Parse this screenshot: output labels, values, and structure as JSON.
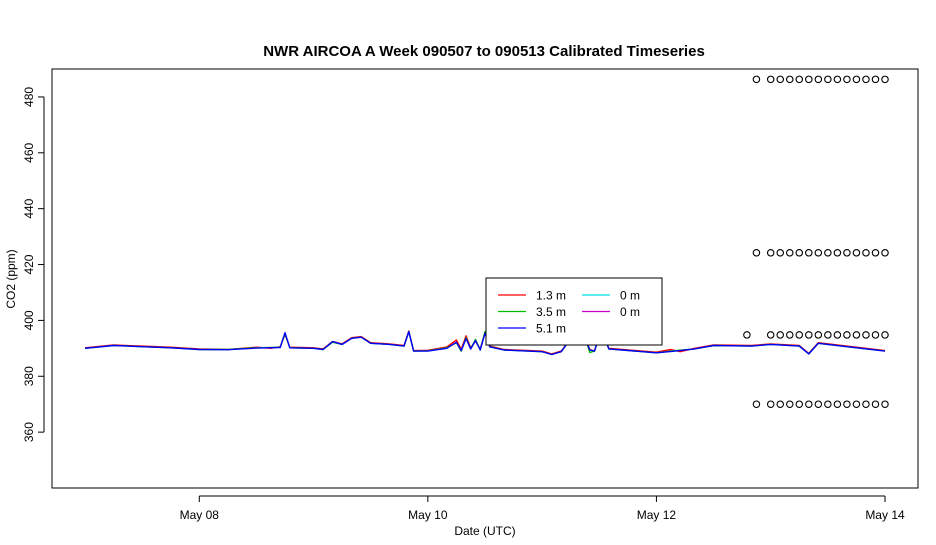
{
  "chart_data": {
    "type": "line",
    "title": "NWR AIRCOA A  Week 090507 to 090513  Calibrated Timeseries",
    "xlabel": "Date (UTC)",
    "ylabel": "CO2 (ppm)",
    "ylim": [
      340,
      490
    ],
    "xlim": [
      "2009-05-07",
      "2009-05-14"
    ],
    "x_ticks": [
      {
        "label": "May 08",
        "value": "2009-05-08"
      },
      {
        "label": "May 10",
        "value": "2009-05-10"
      },
      {
        "label": "May 12",
        "value": "2009-05-12"
      },
      {
        "label": "May 14",
        "value": "2009-05-14"
      }
    ],
    "y_ticks": [
      360,
      380,
      400,
      420,
      440,
      460,
      480
    ],
    "legend": {
      "placement": "center-right",
      "entries": [
        {
          "label": "1.3 m",
          "color": "#ff0000"
        },
        {
          "label": "3.5 m",
          "color": "#00bb00"
        },
        {
          "label": "5.1 m",
          "color": "#0000ff"
        },
        {
          "label": "0 m",
          "color": "#00dddd"
        },
        {
          "label": "0 m",
          "color": "#cc00cc"
        }
      ]
    },
    "series": [
      {
        "color": "#ff0000",
        "points": [
          [
            "2009-05-07 00:00",
            390.2
          ],
          [
            "2009-05-07 06:00",
            391.2
          ],
          [
            "2009-05-07 12:00",
            390.8
          ],
          [
            "2009-05-07 18:00",
            390.4
          ],
          [
            "2009-05-08 00:00",
            389.8
          ],
          [
            "2009-05-08 06:00",
            389.6
          ],
          [
            "2009-05-08 12:00",
            390.4
          ],
          [
            "2009-05-08 15:00",
            390.0
          ],
          [
            "2009-05-08 17:00",
            390.6
          ],
          [
            "2009-05-08 18:00",
            395.0
          ],
          [
            "2009-05-08 19:00",
            390.4
          ],
          [
            "2009-05-09 00:00",
            390.2
          ],
          [
            "2009-05-09 02:00",
            389.8
          ],
          [
            "2009-05-09 04:00",
            392.5
          ],
          [
            "2009-05-09 06:00",
            391.6
          ],
          [
            "2009-05-09 08:00",
            393.8
          ],
          [
            "2009-05-09 10:00",
            394.2
          ],
          [
            "2009-05-09 12:00",
            392.0
          ],
          [
            "2009-05-09 16:00",
            391.6
          ],
          [
            "2009-05-09 19:00",
            391.0
          ],
          [
            "2009-05-09 20:00",
            396.2
          ],
          [
            "2009-05-09 21:00",
            389.2
          ],
          [
            "2009-05-10 00:00",
            389.3
          ],
          [
            "2009-05-10 04:00",
            390.5
          ],
          [
            "2009-05-10 06:00",
            393.0
          ],
          [
            "2009-05-10 07:00",
            389.6
          ],
          [
            "2009-05-10 08:00",
            394.5
          ],
          [
            "2009-05-10 09:00",
            390.2
          ],
          [
            "2009-05-10 10:00",
            392.6
          ],
          [
            "2009-05-10 11:00",
            389.8
          ],
          [
            "2009-05-10 12:00",
            395.5
          ],
          [
            "2009-05-10 13:00",
            390.8
          ],
          [
            "2009-05-10 16:00",
            389.6
          ],
          [
            "2009-05-11 00:00",
            389.0
          ],
          [
            "2009-05-11 02:00",
            388.0
          ],
          [
            "2009-05-11 04:00",
            389.0
          ],
          [
            "2009-05-11 06:00",
            393.5
          ],
          [
            "2009-05-11 09:00",
            393.8
          ],
          [
            "2009-05-11 10:00",
            389.6
          ],
          [
            "2009-05-11 11:00",
            389.0
          ],
          [
            "2009-05-11 12:00",
            394.5
          ],
          [
            "2009-05-11 13:00",
            394.5
          ],
          [
            "2009-05-11 14:00",
            390.0
          ],
          [
            "2009-05-12 00:00",
            388.6
          ],
          [
            "2009-05-12 03:00",
            389.6
          ],
          [
            "2009-05-12 05:00",
            388.8
          ],
          [
            "2009-05-12 08:00",
            390.0
          ],
          [
            "2009-05-12 12:00",
            391.2
          ],
          [
            "2009-05-12 20:00",
            391.0
          ],
          [
            "2009-05-13 00:00",
            391.6
          ],
          [
            "2009-05-13 06:00",
            391.0
          ],
          [
            "2009-05-13 08:00",
            388.2
          ],
          [
            "2009-05-13 10:00",
            392.0
          ],
          [
            "2009-05-13 16:00",
            390.8
          ],
          [
            "2009-05-14 00:00",
            389.2
          ]
        ]
      },
      {
        "color": "#00bb00",
        "points": [
          [
            "2009-05-07 00:00",
            390.0
          ],
          [
            "2009-05-07 06:00",
            391.0
          ],
          [
            "2009-05-07 12:00",
            390.6
          ],
          [
            "2009-05-07 18:00",
            390.2
          ],
          [
            "2009-05-08 00:00",
            389.6
          ],
          [
            "2009-05-08 06:00",
            389.6
          ],
          [
            "2009-05-08 12:00",
            390.2
          ],
          [
            "2009-05-08 17:00",
            390.4
          ],
          [
            "2009-05-08 18:00",
            395.2
          ],
          [
            "2009-05-08 19:00",
            390.2
          ],
          [
            "2009-05-09 00:00",
            390.0
          ],
          [
            "2009-05-09 02:00",
            389.6
          ],
          [
            "2009-05-09 04:00",
            392.2
          ],
          [
            "2009-05-09 06:00",
            391.4
          ],
          [
            "2009-05-09 08:00",
            393.6
          ],
          [
            "2009-05-09 10:00",
            394.0
          ],
          [
            "2009-05-09 12:00",
            391.8
          ],
          [
            "2009-05-09 16:00",
            391.4
          ],
          [
            "2009-05-09 19:00",
            390.8
          ],
          [
            "2009-05-09 20:00",
            396.0
          ],
          [
            "2009-05-09 21:00",
            389.0
          ],
          [
            "2009-05-10 00:00",
            389.1
          ],
          [
            "2009-05-10 04:00",
            390.2
          ],
          [
            "2009-05-10 06:00",
            392.0
          ],
          [
            "2009-05-10 07:00",
            389.0
          ],
          [
            "2009-05-10 08:00",
            393.8
          ],
          [
            "2009-05-10 09:00",
            389.8
          ],
          [
            "2009-05-10 10:00",
            393.2
          ],
          [
            "2009-05-10 11:00",
            389.4
          ],
          [
            "2009-05-10 12:00",
            396.0
          ],
          [
            "2009-05-10 13:00",
            390.6
          ],
          [
            "2009-05-10 16:00",
            389.4
          ],
          [
            "2009-05-11 00:00",
            388.8
          ],
          [
            "2009-05-11 02:00",
            387.8
          ],
          [
            "2009-05-11 04:00",
            388.8
          ],
          [
            "2009-05-11 06:00",
            393.4
          ],
          [
            "2009-05-11 08:00",
            393.0
          ],
          [
            "2009-05-11 09:00",
            394.0
          ],
          [
            "2009-05-11 10:00",
            388.5
          ],
          [
            "2009-05-11 11:00",
            389.0
          ],
          [
            "2009-05-11 12:00",
            394.4
          ],
          [
            "2009-05-11 13:00",
            394.4
          ],
          [
            "2009-05-11 14:00",
            389.8
          ],
          [
            "2009-05-12 00:00",
            388.4
          ],
          [
            "2009-05-12 04:00",
            389.2
          ],
          [
            "2009-05-12 08:00",
            389.8
          ],
          [
            "2009-05-12 12:00",
            391.0
          ],
          [
            "2009-05-12 20:00",
            390.8
          ],
          [
            "2009-05-13 00:00",
            391.4
          ],
          [
            "2009-05-13 06:00",
            390.8
          ],
          [
            "2009-05-13 08:00",
            388.0
          ],
          [
            "2009-05-13 10:00",
            391.8
          ],
          [
            "2009-05-13 16:00",
            390.6
          ],
          [
            "2009-05-14 00:00",
            389.0
          ]
        ]
      },
      {
        "color": "#0000ff",
        "points": [
          [
            "2009-05-07 00:00",
            390.0
          ],
          [
            "2009-05-07 06:00",
            391.0
          ],
          [
            "2009-05-07 12:00",
            390.6
          ],
          [
            "2009-05-07 18:00",
            390.2
          ],
          [
            "2009-05-08 00:00",
            389.6
          ],
          [
            "2009-05-08 06:00",
            389.5
          ],
          [
            "2009-05-08 12:00",
            390.1
          ],
          [
            "2009-05-08 17:00",
            390.3
          ],
          [
            "2009-05-08 18:00",
            395.6
          ],
          [
            "2009-05-08 19:00",
            390.2
          ],
          [
            "2009-05-09 00:00",
            390.0
          ],
          [
            "2009-05-09 02:00",
            389.6
          ],
          [
            "2009-05-09 04:00",
            392.4
          ],
          [
            "2009-05-09 06:00",
            391.4
          ],
          [
            "2009-05-09 08:00",
            393.6
          ],
          [
            "2009-05-09 10:00",
            394.0
          ],
          [
            "2009-05-09 12:00",
            391.8
          ],
          [
            "2009-05-09 16:00",
            391.4
          ],
          [
            "2009-05-09 19:00",
            390.8
          ],
          [
            "2009-05-09 20:00",
            396.0
          ],
          [
            "2009-05-09 21:00",
            389.0
          ],
          [
            "2009-05-10 00:00",
            389.0
          ],
          [
            "2009-05-10 04:00",
            390.0
          ],
          [
            "2009-05-10 06:00",
            392.2
          ],
          [
            "2009-05-10 07:00",
            389.2
          ],
          [
            "2009-05-10 08:00",
            393.5
          ],
          [
            "2009-05-10 09:00",
            389.8
          ],
          [
            "2009-05-10 10:00",
            392.8
          ],
          [
            "2009-05-10 11:00",
            389.4
          ],
          [
            "2009-05-10 12:00",
            395.4
          ],
          [
            "2009-05-10 13:00",
            390.5
          ],
          [
            "2009-05-10 16:00",
            389.4
          ],
          [
            "2009-05-11 00:00",
            388.8
          ],
          [
            "2009-05-11 02:00",
            387.8
          ],
          [
            "2009-05-11 04:00",
            388.8
          ],
          [
            "2009-05-11 06:00",
            393.4
          ],
          [
            "2009-05-11 09:00",
            393.6
          ],
          [
            "2009-05-11 10:00",
            389.4
          ],
          [
            "2009-05-11 11:00",
            389.0
          ],
          [
            "2009-05-11 12:00",
            394.4
          ],
          [
            "2009-05-11 13:00",
            394.4
          ],
          [
            "2009-05-11 14:00",
            389.8
          ],
          [
            "2009-05-12 00:00",
            388.4
          ],
          [
            "2009-05-12 04:00",
            389.0
          ],
          [
            "2009-05-12 08:00",
            389.8
          ],
          [
            "2009-05-12 12:00",
            391.0
          ],
          [
            "2009-05-12 20:00",
            390.8
          ],
          [
            "2009-05-13 00:00",
            391.4
          ],
          [
            "2009-05-13 06:00",
            390.8
          ],
          [
            "2009-05-13 08:00",
            388.0
          ],
          [
            "2009-05-13 10:00",
            391.8
          ],
          [
            "2009-05-13 16:00",
            390.6
          ],
          [
            "2009-05-14 00:00",
            389.0
          ]
        ]
      }
    ],
    "calibration_points": {
      "marker": "open-circle",
      "groups": [
        {
          "y": 486.3,
          "x": [
            "2009-05-12 21:00",
            "2009-05-13 00:00",
            "2009-05-13 02:00",
            "2009-05-13 04:00",
            "2009-05-13 06:00",
            "2009-05-13 08:00",
            "2009-05-13 10:00",
            "2009-05-13 12:00",
            "2009-05-13 14:00",
            "2009-05-13 16:00",
            "2009-05-13 18:00",
            "2009-05-13 20:00",
            "2009-05-13 22:00",
            "2009-05-14 00:00"
          ]
        },
        {
          "y": 424.2,
          "x": [
            "2009-05-12 21:00",
            "2009-05-13 00:00",
            "2009-05-13 02:00",
            "2009-05-13 04:00",
            "2009-05-13 06:00",
            "2009-05-13 08:00",
            "2009-05-13 10:00",
            "2009-05-13 12:00",
            "2009-05-13 14:00",
            "2009-05-13 16:00",
            "2009-05-13 18:00",
            "2009-05-13 20:00",
            "2009-05-13 22:00",
            "2009-05-14 00:00"
          ]
        },
        {
          "y": 394.8,
          "x": [
            "2009-05-12 19:00",
            "2009-05-13 00:00",
            "2009-05-13 02:00",
            "2009-05-13 04:00",
            "2009-05-13 06:00",
            "2009-05-13 08:00",
            "2009-05-13 10:00",
            "2009-05-13 12:00",
            "2009-05-13 14:00",
            "2009-05-13 16:00",
            "2009-05-13 18:00",
            "2009-05-13 20:00",
            "2009-05-13 22:00",
            "2009-05-14 00:00"
          ]
        },
        {
          "y": 370.0,
          "x": [
            "2009-05-12 21:00",
            "2009-05-13 00:00",
            "2009-05-13 02:00",
            "2009-05-13 04:00",
            "2009-05-13 06:00",
            "2009-05-13 08:00",
            "2009-05-13 10:00",
            "2009-05-13 12:00",
            "2009-05-13 14:00",
            "2009-05-13 16:00",
            "2009-05-13 18:00",
            "2009-05-13 20:00",
            "2009-05-13 22:00",
            "2009-05-14 00:00"
          ]
        }
      ]
    }
  }
}
